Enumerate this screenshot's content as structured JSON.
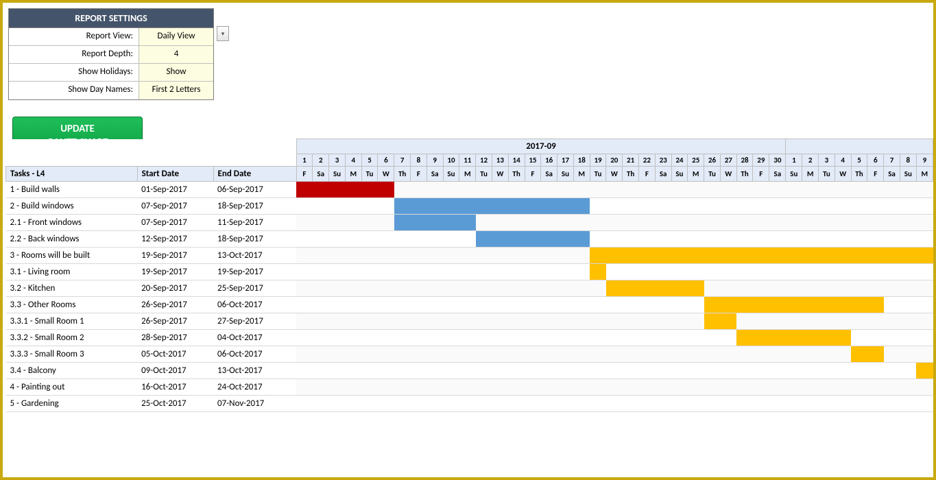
{
  "settings": {
    "header": "REPORT SETTINGS",
    "rows": [
      {
        "label": "Report View:",
        "value": "Daily View"
      },
      {
        "label": "Report Depth:",
        "value": "4"
      },
      {
        "label": "Show Holidays:",
        "value": "Show"
      },
      {
        "label": "Show Day Names:",
        "value": "First 2 Letters"
      }
    ]
  },
  "update_button": {
    "line1": "UPDATE",
    "line2": "GANTT CHART"
  },
  "columns": {
    "tasks": "Tasks - L4",
    "start": "Start Date",
    "end": "End Date"
  },
  "month_header": "2017-09",
  "day_numbers": [
    1,
    2,
    3,
    4,
    5,
    6,
    7,
    8,
    9,
    10,
    11,
    12,
    13,
    14,
    15,
    16,
    17,
    18,
    19,
    20,
    21,
    22,
    23,
    24,
    25,
    26,
    27,
    28,
    29,
    30,
    1,
    2,
    3,
    4,
    5,
    6,
    7,
    8,
    9
  ],
  "day_names": [
    "F",
    "Sa",
    "Su",
    "M",
    "Tu",
    "W",
    "Th",
    "F",
    "Sa",
    "Su",
    "M",
    "Tu",
    "W",
    "Th",
    "F",
    "Sa",
    "Su",
    "M",
    "Tu",
    "W",
    "Th",
    "F",
    "Sa",
    "Su",
    "M",
    "Tu",
    "W",
    "Th",
    "F",
    "Sa",
    "Su",
    "M",
    "Tu",
    "W",
    "Th",
    "F",
    "Sa",
    "Su",
    "M"
  ],
  "colors": {
    "red": "#c00000",
    "blue": "#5b9bd5",
    "yellow": "#ffc000",
    "header_bg": "#e3ebf8",
    "settings_value_bg": "#fdfde1"
  },
  "tasks": [
    {
      "name": "1 - Build walls",
      "start": "01-Sep-2017",
      "end": "06-Sep-2017",
      "bar_start": 1,
      "bar_end": 6,
      "color": "red"
    },
    {
      "name": "2 - Build windows",
      "start": "07-Sep-2017",
      "end": "18-Sep-2017",
      "bar_start": 7,
      "bar_end": 18,
      "color": "blue"
    },
    {
      "name": "2.1 - Front windows",
      "start": "07-Sep-2017",
      "end": "11-Sep-2017",
      "bar_start": 7,
      "bar_end": 11,
      "color": "blue"
    },
    {
      "name": "2.2 - Back windows",
      "start": "12-Sep-2017",
      "end": "18-Sep-2017",
      "bar_start": 12,
      "bar_end": 18,
      "color": "blue"
    },
    {
      "name": "3 - Rooms will be built",
      "start": "19-Sep-2017",
      "end": "13-Oct-2017",
      "bar_start": 19,
      "bar_end": 39,
      "color": "yellow"
    },
    {
      "name": "3.1 - Living room",
      "start": "19-Sep-2017",
      "end": "19-Sep-2017",
      "bar_start": 19,
      "bar_end": 19,
      "color": "yellow"
    },
    {
      "name": "3.2 - Kitchen",
      "start": "20-Sep-2017",
      "end": "25-Sep-2017",
      "bar_start": 20,
      "bar_end": 25,
      "color": "yellow"
    },
    {
      "name": "3.3 - Other Rooms",
      "start": "26-Sep-2017",
      "end": "06-Oct-2017",
      "bar_start": 26,
      "bar_end": 36,
      "color": "yellow"
    },
    {
      "name": "3.3.1 - Small Room 1",
      "start": "26-Sep-2017",
      "end": "27-Sep-2017",
      "bar_start": 26,
      "bar_end": 27,
      "color": "yellow"
    },
    {
      "name": "3.3.2 - Small Room 2",
      "start": "28-Sep-2017",
      "end": "04-Oct-2017",
      "bar_start": 28,
      "bar_end": 34,
      "color": "yellow"
    },
    {
      "name": "3.3.3 - Small Room 3",
      "start": "05-Oct-2017",
      "end": "06-Oct-2017",
      "bar_start": 35,
      "bar_end": 36,
      "color": "yellow"
    },
    {
      "name": "3.4 - Balcony",
      "start": "09-Oct-2017",
      "end": "13-Oct-2017",
      "bar_start": 39,
      "bar_end": 39,
      "color": "yellow"
    },
    {
      "name": "4 - Painting out",
      "start": "16-Oct-2017",
      "end": "24-Oct-2017",
      "bar_start": 0,
      "bar_end": 0,
      "color": ""
    },
    {
      "name": "5 - Gardening",
      "start": "25-Oct-2017",
      "end": "07-Nov-2017",
      "bar_start": 0,
      "bar_end": 0,
      "color": ""
    }
  ]
}
